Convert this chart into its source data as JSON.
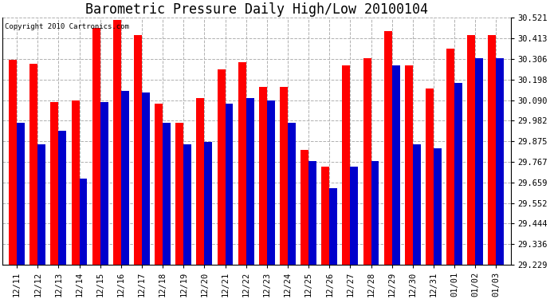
{
  "title": "Barometric Pressure Daily High/Low 20100104",
  "copyright": "Copyright 2010 Cartronics.com",
  "categories": [
    "12/11",
    "12/12",
    "12/13",
    "12/14",
    "12/15",
    "12/16",
    "12/17",
    "12/18",
    "12/19",
    "12/20",
    "12/21",
    "12/22",
    "12/23",
    "12/24",
    "12/25",
    "12/26",
    "12/27",
    "12/28",
    "12/29",
    "12/30",
    "12/31",
    "01/01",
    "01/02",
    "01/03"
  ],
  "highs": [
    30.3,
    30.28,
    30.08,
    30.09,
    30.47,
    30.51,
    30.43,
    30.07,
    29.97,
    30.1,
    30.25,
    30.29,
    30.16,
    30.16,
    29.83,
    29.74,
    30.27,
    30.31,
    30.45,
    30.27,
    30.15,
    30.36,
    30.43,
    30.43
  ],
  "lows": [
    29.97,
    29.86,
    29.93,
    29.68,
    30.08,
    30.14,
    30.13,
    29.97,
    29.86,
    29.87,
    30.07,
    30.1,
    30.09,
    29.97,
    29.77,
    29.63,
    29.74,
    29.77,
    30.27,
    29.86,
    29.84,
    30.18,
    30.31,
    30.31
  ],
  "high_color": "#ff0000",
  "low_color": "#0000cc",
  "bg_color": "#ffffff",
  "grid_color": "#b0b0b0",
  "yticks": [
    29.229,
    29.336,
    29.444,
    29.552,
    29.659,
    29.767,
    29.875,
    29.982,
    30.09,
    30.198,
    30.306,
    30.413,
    30.521
  ],
  "ymin": 29.229,
  "ymax": 30.521,
  "title_fontsize": 12,
  "tick_fontsize": 7.5,
  "bar_width": 0.38
}
